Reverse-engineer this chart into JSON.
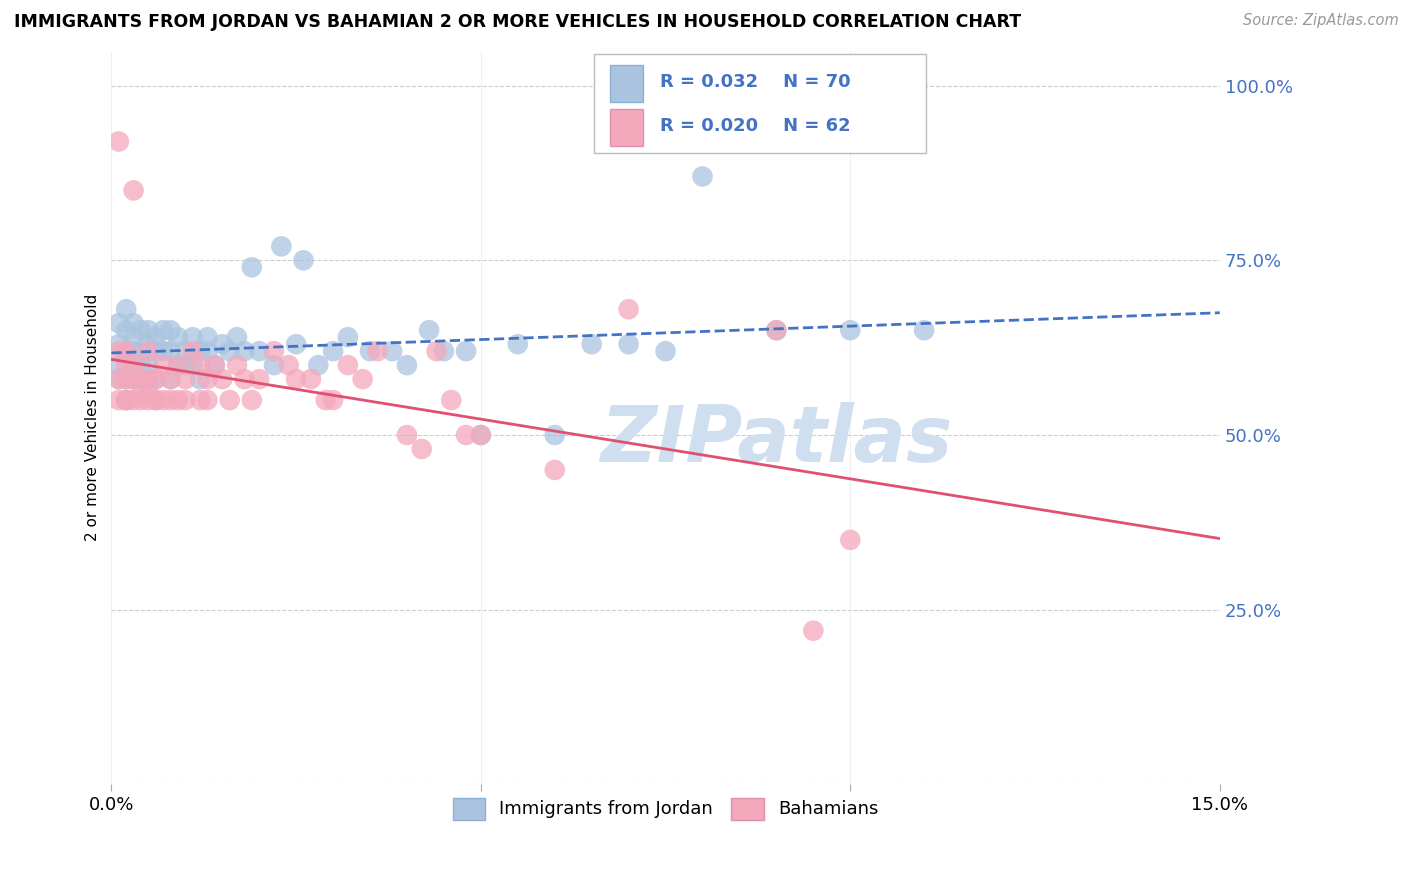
{
  "title": "IMMIGRANTS FROM JORDAN VS BAHAMIAN 2 OR MORE VEHICLES IN HOUSEHOLD CORRELATION CHART",
  "source": "Source: ZipAtlas.com",
  "ylabel": "2 or more Vehicles in Household",
  "ytick_vals": [
    0.0,
    0.25,
    0.5,
    0.75,
    1.0
  ],
  "ytick_labels": [
    "",
    "25.0%",
    "50.0%",
    "75.0%",
    "100.0%"
  ],
  "xlim": [
    0.0,
    0.15
  ],
  "ylim": [
    0.0,
    1.05
  ],
  "xtick_vals": [
    0.0,
    0.05,
    0.1,
    0.15
  ],
  "xtick_labels": [
    "0.0%",
    "",
    "",
    "15.0%"
  ],
  "legend_r_blue": "R = 0.032",
  "legend_n_blue": "N = 70",
  "legend_r_pink": "R = 0.020",
  "legend_n_pink": "N = 62",
  "legend_label_blue": "Immigrants from Jordan",
  "legend_label_pink": "Bahamians",
  "blue_color": "#aac4e0",
  "pink_color": "#f4a8bc",
  "trendline_blue_color": "#4472c4",
  "trendline_pink_color": "#e05070",
  "grid_color": "#cccccc",
  "watermark": "ZIPatlas",
  "watermark_color": "#d0dff0",
  "blue_x": [
    0.001,
    0.001,
    0.001,
    0.001,
    0.002,
    0.002,
    0.002,
    0.002,
    0.002,
    0.003,
    0.003,
    0.003,
    0.003,
    0.003,
    0.004,
    0.004,
    0.004,
    0.004,
    0.005,
    0.005,
    0.005,
    0.005,
    0.006,
    0.006,
    0.006,
    0.007,
    0.007,
    0.008,
    0.008,
    0.008,
    0.009,
    0.009,
    0.01,
    0.01,
    0.011,
    0.011,
    0.012,
    0.012,
    0.013,
    0.013,
    0.014,
    0.015,
    0.016,
    0.017,
    0.018,
    0.019,
    0.02,
    0.022,
    0.023,
    0.025,
    0.026,
    0.028,
    0.03,
    0.032,
    0.035,
    0.038,
    0.04,
    0.043,
    0.045,
    0.048,
    0.05,
    0.055,
    0.06,
    0.065,
    0.07,
    0.075,
    0.08,
    0.09,
    0.1,
    0.11
  ],
  "blue_y": [
    0.6,
    0.63,
    0.66,
    0.58,
    0.62,
    0.65,
    0.58,
    0.55,
    0.68,
    0.6,
    0.64,
    0.58,
    0.62,
    0.66,
    0.62,
    0.6,
    0.65,
    0.58,
    0.63,
    0.6,
    0.57,
    0.65,
    0.62,
    0.64,
    0.58,
    0.62,
    0.65,
    0.62,
    0.65,
    0.58,
    0.6,
    0.64,
    0.62,
    0.6,
    0.64,
    0.6,
    0.62,
    0.58,
    0.62,
    0.64,
    0.6,
    0.63,
    0.62,
    0.64,
    0.62,
    0.74,
    0.62,
    0.6,
    0.77,
    0.63,
    0.75,
    0.6,
    0.62,
    0.64,
    0.62,
    0.62,
    0.6,
    0.65,
    0.62,
    0.62,
    0.5,
    0.63,
    0.5,
    0.63,
    0.63,
    0.62,
    0.87,
    0.65,
    0.65,
    0.65
  ],
  "pink_x": [
    0.001,
    0.001,
    0.001,
    0.001,
    0.002,
    0.002,
    0.002,
    0.002,
    0.002,
    0.003,
    0.003,
    0.003,
    0.003,
    0.004,
    0.004,
    0.004,
    0.005,
    0.005,
    0.005,
    0.006,
    0.006,
    0.006,
    0.007,
    0.007,
    0.008,
    0.008,
    0.009,
    0.009,
    0.01,
    0.01,
    0.011,
    0.012,
    0.012,
    0.013,
    0.013,
    0.014,
    0.015,
    0.016,
    0.017,
    0.018,
    0.019,
    0.02,
    0.022,
    0.024,
    0.025,
    0.027,
    0.029,
    0.03,
    0.032,
    0.034,
    0.036,
    0.04,
    0.042,
    0.044,
    0.046,
    0.048,
    0.05,
    0.06,
    0.07,
    0.09,
    0.095,
    0.1
  ],
  "pink_y": [
    0.58,
    0.55,
    0.62,
    0.92,
    0.6,
    0.55,
    0.58,
    0.55,
    0.62,
    0.58,
    0.55,
    0.6,
    0.85,
    0.56,
    0.58,
    0.55,
    0.55,
    0.58,
    0.62,
    0.55,
    0.58,
    0.55,
    0.55,
    0.6,
    0.55,
    0.58,
    0.55,
    0.6,
    0.55,
    0.58,
    0.62,
    0.55,
    0.6,
    0.55,
    0.58,
    0.6,
    0.58,
    0.55,
    0.6,
    0.58,
    0.55,
    0.58,
    0.62,
    0.6,
    0.58,
    0.58,
    0.55,
    0.55,
    0.6,
    0.58,
    0.62,
    0.5,
    0.48,
    0.62,
    0.55,
    0.5,
    0.5,
    0.45,
    0.68,
    0.65,
    0.22,
    0.35
  ]
}
